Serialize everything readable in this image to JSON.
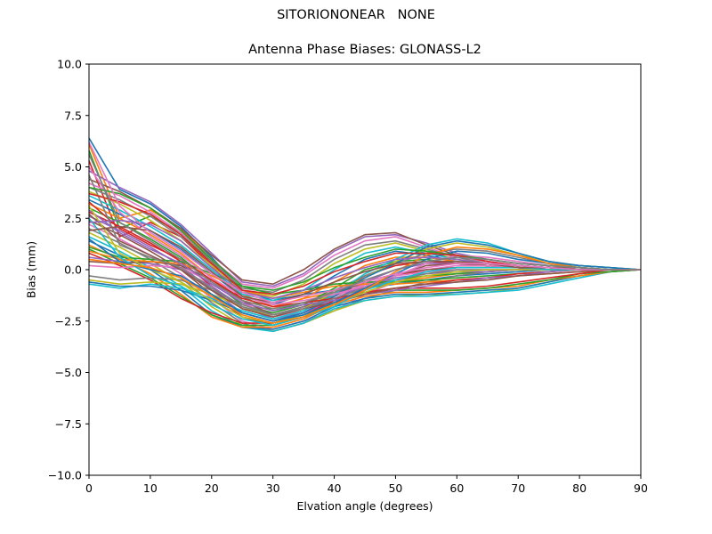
{
  "chart_data": {
    "type": "line",
    "suptitle": "SITORIONONEAR   NONE",
    "title": "Antenna Phase Biases: GLONASS-L2",
    "xlabel": "Elvation angle (degrees)",
    "ylabel": "Bias (mm)",
    "xlim": [
      0,
      90
    ],
    "ylim": [
      -10,
      10
    ],
    "xticks": [
      0,
      10,
      20,
      30,
      40,
      50,
      60,
      70,
      80,
      90
    ],
    "yticks": [
      -10.0,
      -7.5,
      -5.0,
      -2.5,
      0.0,
      2.5,
      5.0,
      7.5,
      10.0
    ],
    "xtick_labels": [
      "0",
      "10",
      "20",
      "30",
      "40",
      "50",
      "60",
      "70",
      "80",
      "90"
    ],
    "ytick_labels": [
      "−10.0",
      "−7.5",
      "−5.0",
      "−2.5",
      "0.0",
      "2.5",
      "5.0",
      "7.5",
      "10.0"
    ],
    "grid": false,
    "legend": "none",
    "colors": [
      "#1f77b4",
      "#ff7f0e",
      "#2ca02c",
      "#d62728",
      "#9467bd",
      "#8c564b",
      "#e377c2",
      "#7f7f7f",
      "#bcbd22",
      "#17becf"
    ],
    "x": [
      0,
      5,
      10,
      15,
      20,
      25,
      30,
      35,
      40,
      45,
      50,
      55,
      60,
      65,
      70,
      75,
      80,
      85,
      90
    ],
    "series": [
      {
        "values": [
          6.4,
          3.9,
          3.2,
          2.1,
          0.6,
          -1.0,
          -1.5,
          -1.2,
          -1.0,
          -0.9,
          -0.7,
          -0.5,
          -0.3,
          -0.2,
          -0.1,
          0.0,
          0.0,
          0.0,
          0.0
        ]
      },
      {
        "values": [
          6.1,
          2.5,
          2.9,
          2.0,
          0.5,
          -1.2,
          -1.8,
          -1.4,
          -1.1,
          -0.9,
          -0.6,
          -0.4,
          -0.2,
          -0.1,
          0.0,
          0.0,
          0.0,
          0.0,
          0.0
        ]
      },
      {
        "values": [
          5.8,
          2.0,
          2.6,
          1.8,
          0.4,
          -1.3,
          -2.0,
          -1.6,
          -1.2,
          -0.8,
          -0.5,
          -0.3,
          -0.2,
          -0.1,
          0.0,
          0.0,
          0.0,
          0.0,
          0.0
        ]
      },
      {
        "values": [
          5.3,
          1.6,
          2.3,
          1.6,
          0.2,
          -1.5,
          -2.2,
          -1.8,
          -1.3,
          -0.7,
          -0.3,
          0.0,
          0.1,
          0.1,
          0.1,
          0.1,
          0.0,
          0.0,
          0.0
        ]
      },
      {
        "values": [
          4.8,
          4.0,
          3.3,
          2.2,
          0.8,
          -0.6,
          -0.8,
          -0.2,
          0.9,
          1.6,
          1.7,
          1.3,
          0.8,
          0.5,
          0.3,
          0.2,
          0.1,
          0.0,
          0.0
        ]
      },
      {
        "values": [
          4.4,
          3.8,
          3.0,
          2.0,
          0.7,
          -0.5,
          -0.7,
          0.0,
          1.0,
          1.7,
          1.8,
          1.2,
          0.7,
          0.4,
          0.2,
          0.1,
          0.1,
          0.0,
          0.0
        ]
      },
      {
        "values": [
          4.2,
          3.6,
          2.8,
          1.8,
          0.5,
          -0.7,
          -0.9,
          -0.3,
          0.7,
          1.4,
          1.6,
          1.1,
          0.6,
          0.4,
          0.2,
          0.1,
          0.0,
          0.0,
          0.0
        ]
      },
      {
        "values": [
          4.0,
          3.4,
          2.6,
          1.6,
          0.4,
          -0.9,
          -1.1,
          -0.5,
          0.5,
          1.2,
          1.4,
          1.0,
          0.6,
          0.3,
          0.2,
          0.1,
          0.0,
          0.0,
          0.0
        ]
      },
      {
        "values": [
          3.8,
          3.2,
          2.4,
          1.4,
          0.2,
          -1.0,
          -1.3,
          -0.7,
          0.3,
          1.0,
          1.3,
          0.9,
          0.5,
          0.3,
          0.1,
          0.1,
          0.0,
          0.0,
          0.0
        ]
      },
      {
        "values": [
          3.6,
          2.9,
          2.1,
          1.2,
          0.0,
          -1.2,
          -1.5,
          -1.0,
          0.0,
          0.8,
          1.1,
          0.8,
          0.5,
          0.2,
          0.1,
          0.0,
          0.0,
          0.0,
          0.0
        ]
      },
      {
        "values": [
          3.4,
          2.7,
          1.9,
          1.0,
          -0.2,
          -1.3,
          -1.7,
          -1.2,
          -0.3,
          0.5,
          0.9,
          0.7,
          0.4,
          0.2,
          0.1,
          0.0,
          0.0,
          0.0,
          0.0
        ]
      },
      {
        "values": [
          3.2,
          2.5,
          1.7,
          0.8,
          -0.4,
          -1.5,
          -1.9,
          -1.4,
          -0.6,
          0.2,
          0.6,
          0.6,
          0.4,
          0.2,
          0.1,
          0.0,
          0.0,
          0.0,
          0.0
        ]
      },
      {
        "values": [
          3.0,
          2.3,
          1.5,
          0.6,
          -0.6,
          -1.7,
          -2.1,
          -1.7,
          -0.9,
          0.0,
          0.4,
          0.5,
          0.3,
          0.2,
          0.1,
          0.0,
          0.0,
          0.0,
          0.0
        ]
      },
      {
        "values": [
          2.8,
          2.1,
          1.3,
          0.4,
          -0.8,
          -1.9,
          -2.3,
          -1.9,
          -1.2,
          -0.3,
          0.2,
          0.4,
          0.3,
          0.2,
          0.1,
          0.0,
          0.0,
          0.0,
          0.0
        ]
      },
      {
        "values": [
          2.6,
          1.9,
          1.1,
          0.2,
          -1.0,
          -2.1,
          -2.5,
          -2.1,
          -1.5,
          -0.6,
          0.0,
          0.3,
          0.3,
          0.2,
          0.1,
          0.0,
          0.0,
          0.0,
          0.0
        ]
      },
      {
        "values": [
          2.4,
          1.7,
          0.9,
          0.0,
          -1.2,
          -2.3,
          -2.7,
          -2.3,
          -1.8,
          -0.9,
          -0.3,
          0.2,
          0.3,
          0.2,
          0.1,
          0.0,
          0.0,
          0.0,
          0.0
        ]
      },
      {
        "values": [
          2.2,
          1.5,
          0.7,
          -0.2,
          -1.4,
          -2.5,
          -2.9,
          -2.5,
          -2.0,
          -1.2,
          -0.6,
          0.0,
          0.2,
          0.2,
          0.1,
          0.0,
          0.0,
          0.0,
          0.0
        ]
      },
      {
        "values": [
          2.0,
          1.3,
          0.5,
          -0.4,
          -1.6,
          -2.6,
          -3.0,
          -2.6,
          -2.0,
          -1.4,
          -1.0,
          -0.6,
          -0.3,
          -0.1,
          0.0,
          0.0,
          0.0,
          0.0,
          0.0
        ]
      },
      {
        "values": [
          1.8,
          1.1,
          0.3,
          -0.6,
          -1.8,
          -2.7,
          -3.0,
          -2.6,
          -2.0,
          -1.5,
          -1.3,
          -1.2,
          -1.2,
          -1.1,
          -0.9,
          -0.6,
          -0.3,
          -0.1,
          0.0
        ]
      },
      {
        "values": [
          1.6,
          0.9,
          0.1,
          -0.8,
          -2.0,
          -2.8,
          -3.0,
          -2.6,
          -1.9,
          -1.5,
          -1.3,
          -1.3,
          -1.2,
          -1.1,
          -1.0,
          -0.7,
          -0.4,
          -0.1,
          0.0
        ]
      },
      {
        "values": [
          1.4,
          0.7,
          0.0,
          -1.0,
          -2.2,
          -2.8,
          -2.9,
          -2.5,
          -1.8,
          -1.4,
          -1.2,
          -1.2,
          -1.1,
          -1.0,
          -0.9,
          -0.6,
          -0.3,
          -0.1,
          0.0
        ]
      },
      {
        "values": [
          1.2,
          0.5,
          -0.2,
          -1.2,
          -2.3,
          -2.8,
          -2.8,
          -2.4,
          -1.7,
          -1.3,
          -1.1,
          -1.1,
          -1.0,
          -0.9,
          -0.8,
          -0.5,
          -0.3,
          -0.1,
          0.0
        ]
      },
      {
        "values": [
          1.0,
          0.3,
          -0.4,
          -1.3,
          -2.2,
          -2.7,
          -2.7,
          -2.3,
          -1.6,
          -1.2,
          -1.0,
          -1.0,
          -1.0,
          -0.9,
          -0.7,
          -0.5,
          -0.2,
          -0.1,
          0.0
        ]
      },
      {
        "values": [
          0.8,
          0.2,
          -0.5,
          -1.4,
          -2.1,
          -2.6,
          -2.6,
          -2.2,
          -1.5,
          -1.1,
          -0.9,
          -0.9,
          -0.9,
          -0.8,
          -0.6,
          -0.4,
          -0.2,
          0.0,
          0.0
        ]
      },
      {
        "values": [
          0.6,
          0.4,
          0.3,
          0.0,
          -0.8,
          -1.8,
          -2.4,
          -2.1,
          -1.4,
          -0.8,
          -0.4,
          -0.2,
          -0.1,
          -0.1,
          0.0,
          0.0,
          0.0,
          0.0,
          0.0
        ]
      },
      {
        "values": [
          0.4,
          0.3,
          0.4,
          0.2,
          -0.5,
          -1.5,
          -2.2,
          -1.9,
          -1.2,
          -0.6,
          -0.2,
          0.0,
          0.1,
          0.1,
          0.1,
          0.0,
          0.0,
          0.0,
          0.0
        ]
      },
      {
        "values": [
          0.2,
          0.1,
          0.2,
          0.1,
          -0.6,
          -1.6,
          -2.3,
          -2.0,
          -1.3,
          -0.7,
          -0.3,
          -0.1,
          0.0,
          0.0,
          0.0,
          0.0,
          0.0,
          0.0,
          0.0
        ]
      },
      {
        "values": [
          -0.3,
          -0.5,
          -0.4,
          -0.5,
          -1.0,
          -1.7,
          -2.2,
          -1.8,
          -1.0,
          -0.3,
          0.3,
          0.8,
          1.0,
          0.9,
          0.6,
          0.3,
          0.2,
          0.1,
          0.0
        ]
      },
      {
        "values": [
          -0.5,
          -0.7,
          -0.6,
          -0.7,
          -1.2,
          -1.8,
          -2.3,
          -1.9,
          -1.1,
          -0.4,
          0.4,
          1.0,
          1.3,
          1.1,
          0.7,
          0.4,
          0.2,
          0.1,
          0.0
        ]
      },
      {
        "values": [
          -0.7,
          -0.9,
          -0.7,
          -0.9,
          -1.4,
          -2.0,
          -2.4,
          -2.0,
          -1.2,
          -0.2,
          0.5,
          1.2,
          1.5,
          1.3,
          0.8,
          0.4,
          0.2,
          0.1,
          0.0
        ]
      },
      {
        "values": [
          -0.6,
          -0.8,
          -0.8,
          -1.0,
          -1.5,
          -2.1,
          -2.5,
          -2.1,
          -1.3,
          -0.4,
          0.3,
          1.1,
          1.4,
          1.2,
          0.8,
          0.4,
          0.2,
          0.1,
          0.0
        ]
      },
      {
        "values": [
          0.9,
          0.5,
          0.4,
          0.3,
          -0.3,
          -1.0,
          -1.4,
          -1.1,
          -0.8,
          -0.7,
          -0.7,
          -0.6,
          -0.5,
          -0.4,
          -0.3,
          -0.2,
          -0.1,
          0.0,
          0.0
        ]
      },
      {
        "values": [
          1.1,
          0.6,
          0.5,
          0.4,
          -0.2,
          -0.8,
          -1.2,
          -1.0,
          -0.7,
          -0.6,
          -0.6,
          -0.5,
          -0.4,
          -0.3,
          -0.2,
          -0.1,
          0.0,
          0.0,
          0.0
        ]
      },
      {
        "values": [
          3.3,
          2.0,
          1.2,
          0.5,
          -0.5,
          -1.4,
          -1.8,
          -1.6,
          -1.4,
          -1.1,
          -0.9,
          -0.7,
          -0.5,
          -0.4,
          -0.2,
          -0.1,
          0.0,
          0.0,
          0.0
        ]
      },
      {
        "values": [
          2.9,
          1.8,
          1.0,
          0.3,
          -0.7,
          -1.6,
          -2.0,
          -1.7,
          -1.5,
          -1.2,
          -1.0,
          -0.8,
          -0.6,
          -0.4,
          -0.3,
          -0.1,
          0.0,
          0.0,
          0.0
        ]
      },
      {
        "values": [
          2.7,
          1.4,
          0.7,
          0.0,
          -1.0,
          -1.9,
          -2.3,
          -1.9,
          -1.6,
          -1.2,
          -0.9,
          -0.7,
          -0.6,
          -0.5,
          -0.3,
          -0.2,
          -0.1,
          0.0,
          0.0
        ]
      },
      {
        "values": [
          5.0,
          2.8,
          1.6,
          0.7,
          -0.4,
          -1.3,
          -1.7,
          -1.5,
          -1.2,
          -0.8,
          -0.3,
          0.3,
          0.7,
          0.6,
          0.4,
          0.2,
          0.1,
          0.0,
          0.0
        ]
      },
      {
        "values": [
          4.6,
          1.2,
          0.6,
          0.1,
          -0.9,
          -1.8,
          -2.2,
          -1.9,
          -1.4,
          -0.9,
          -0.5,
          -0.2,
          0.0,
          0.0,
          0.0,
          0.0,
          0.0,
          0.0,
          0.0
        ]
      },
      {
        "values": [
          3.1,
          0.8,
          0.0,
          -0.6,
          -1.5,
          -2.3,
          -2.6,
          -2.2,
          -1.7,
          -1.1,
          -0.6,
          -0.3,
          -0.1,
          0.0,
          0.0,
          0.0,
          0.0,
          0.0,
          0.0
        ]
      },
      {
        "values": [
          2.5,
          0.6,
          -0.3,
          -0.8,
          -1.7,
          -2.4,
          -2.7,
          -2.3,
          -1.8,
          -1.0,
          -0.5,
          -0.1,
          0.1,
          0.1,
          0.1,
          0.0,
          0.0,
          0.0,
          0.0
        ]
      },
      {
        "values": [
          1.5,
          0.4,
          0.0,
          -0.3,
          -1.2,
          -2.1,
          -2.5,
          -2.2,
          -1.6,
          -0.9,
          -0.2,
          0.5,
          0.9,
          0.8,
          0.5,
          0.3,
          0.1,
          0.0,
          0.0
        ]
      },
      {
        "values": [
          0.5,
          0.3,
          0.1,
          -0.4,
          -1.3,
          -2.2,
          -2.6,
          -2.3,
          -1.7,
          -1.0,
          -0.1,
          0.7,
          1.1,
          1.0,
          0.7,
          0.3,
          0.1,
          0.0,
          0.0
        ]
      },
      {
        "values": [
          4.0,
          3.7,
          3.0,
          1.9,
          0.5,
          -0.8,
          -1.0,
          -0.6,
          0.1,
          0.6,
          1.0,
          0.9,
          0.7,
          0.5,
          0.3,
          0.2,
          0.1,
          0.0,
          0.0
        ]
      },
      {
        "values": [
          3.7,
          3.3,
          2.7,
          1.7,
          0.3,
          -1.0,
          -1.2,
          -0.8,
          -0.1,
          0.4,
          0.8,
          0.8,
          0.7,
          0.4,
          0.2,
          0.1,
          0.0,
          0.0,
          0.0
        ]
      },
      {
        "values": [
          2.3,
          2.4,
          2.2,
          1.4,
          0.1,
          -1.1,
          -1.4,
          -1.0,
          -0.4,
          0.1,
          0.5,
          0.6,
          0.5,
          0.3,
          0.2,
          0.1,
          0.0,
          0.0,
          0.0
        ]
      },
      {
        "values": [
          1.9,
          2.1,
          1.9,
          1.1,
          -0.1,
          -1.3,
          -1.6,
          -1.2,
          -0.6,
          -0.1,
          0.3,
          0.4,
          0.4,
          0.3,
          0.1,
          0.1,
          0.0,
          0.0,
          0.0
        ]
      },
      {
        "values": [
          6.2,
          3.1,
          1.8,
          0.9,
          -0.2,
          -1.1,
          -1.6,
          -1.3,
          -1.0,
          -0.6,
          -0.2,
          0.1,
          0.3,
          0.3,
          0.2,
          0.1,
          0.0,
          0.0,
          0.0
        ]
      },
      {
        "values": [
          5.6,
          2.3,
          1.4,
          0.5,
          -0.6,
          -1.5,
          -1.9,
          -1.6,
          -1.1,
          -0.5,
          0.0,
          0.4,
          0.6,
          0.5,
          0.3,
          0.2,
          0.1,
          0.0,
          0.0
        ]
      }
    ]
  }
}
